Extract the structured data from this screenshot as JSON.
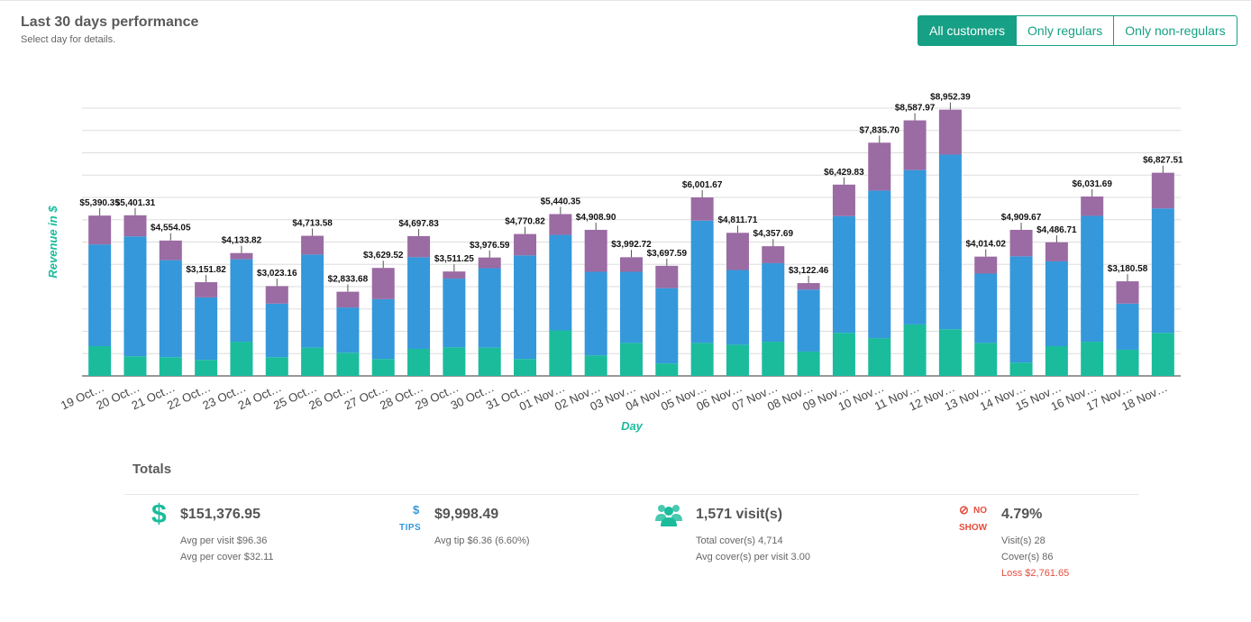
{
  "header": {
    "title": "Last 30 days performance",
    "subtitle": "Select day for details."
  },
  "filters": {
    "all": "All customers",
    "regulars": "Only regulars",
    "non_regulars": "Only non-regulars",
    "active": "all"
  },
  "colors": {
    "accent": "#16a085",
    "bottom_segment": "#1abc9c",
    "middle_segment": "#3498db",
    "top_segment": "#9b6ba3",
    "axis_label": "#1abc9c"
  },
  "chart_data": {
    "type": "bar",
    "stacked": true,
    "ylabel": "Revenue in $",
    "xlabel": "Day",
    "ylim": [
      0,
      9000
    ],
    "grid": true,
    "categories": [
      "19 Oct…",
      "20 Oct…",
      "21 Oct…",
      "22 Oct…",
      "23 Oct…",
      "24 Oct…",
      "25 Oct…",
      "26 Oct…",
      "27 Oct…",
      "28 Oct…",
      "29 Oct…",
      "30 Oct…",
      "31 Oct…",
      "01 Nov…",
      "02 Nov…",
      "03 Nov…",
      "04 Nov…",
      "05 Nov…",
      "06 Nov…",
      "07 Nov…",
      "08 Nov…",
      "09 Nov…",
      "10 Nov…",
      "11 Nov…",
      "12 Nov…",
      "13 Nov…",
      "14 Nov…",
      "15 Nov…",
      "16 Nov…",
      "17 Nov…",
      "18 Nov…"
    ],
    "totals": [
      5390.35,
      5401.31,
      4554.05,
      3151.82,
      4133.82,
      3023.16,
      4713.58,
      2833.68,
      3629.52,
      4697.83,
      3511.25,
      3976.59,
      4770.82,
      5440.35,
      4908.9,
      3992.72,
      3697.59,
      6001.67,
      4811.71,
      4357.69,
      3122.46,
      6429.83,
      7835.7,
      8587.97,
      8952.39,
      4014.02,
      4909.67,
      4486.71,
      6031.69,
      3180.58,
      6827.51
    ],
    "total_labels": [
      "$5,390.35",
      "$5,401.31",
      "$4,554.05",
      "$3,151.82",
      "$4,133.82",
      "$3,023.16",
      "$4,713.58",
      "$2,833.68",
      "$3,629.52",
      "$4,697.83",
      "$3,511.25",
      "$3,976.59",
      "$4,770.82",
      "$5,440.35",
      "$4,908.90",
      "$3,992.72",
      "$3,697.59",
      "$6,001.67",
      "$4,811.71",
      "$4,357.69",
      "$3,122.46",
      "$6,429.83",
      "$7,835.70",
      "$8,587.97",
      "$8,952.39",
      "$4,014.02",
      "$4,909.67",
      "$4,486.71",
      "$6,031.69",
      "$3,180.58",
      "$6,827.51"
    ],
    "series": [
      {
        "values": [
          1000,
          660,
          630,
          540,
          1150,
          630,
          950,
          780,
          570,
          910,
          960,
          950,
          570,
          1530,
          690,
          1110,
          420,
          1110,
          1050,
          1150,
          820,
          1450,
          1270,
          1730,
          1570,
          1110,
          450,
          1000,
          1150,
          880,
          1450
        ]
      },
      {
        "values": [
          3420,
          4030,
          3260,
          2100,
          2770,
          1800,
          3130,
          1520,
          2010,
          3080,
          2310,
          2670,
          3480,
          3210,
          2810,
          2390,
          2530,
          4110,
          2510,
          2640,
          2080,
          3920,
          4960,
          5190,
          5870,
          2330,
          3570,
          2850,
          4230,
          1550,
          4180
        ]
      },
      {
        "values": [
          970,
          710,
          660,
          510,
          210,
          590,
          630,
          530,
          1050,
          710,
          240,
          360,
          720,
          700,
          1410,
          490,
          750,
          780,
          1250,
          570,
          220,
          1060,
          1610,
          1670,
          1510,
          570,
          890,
          640,
          650,
          750,
          1200
        ]
      }
    ]
  },
  "totals": {
    "title": "Totals",
    "revenue": {
      "value": "$151,376.95",
      "line1": "Avg per visit $96.36",
      "line2": "Avg per cover $32.11"
    },
    "tips": {
      "icon_symbol": "$",
      "icon_label": "TIPS",
      "value": "$9,998.49",
      "line1": "Avg tip $6.36 (6.60%)"
    },
    "visits": {
      "value": "1,571 visit(s)",
      "line1": "Total cover(s) 4,714",
      "line2": "Avg cover(s) per visit 3.00"
    },
    "noshow": {
      "icon_symbol": "⊘",
      "icon_word1": "NO",
      "icon_word2": "SHOW",
      "value": "4.79%",
      "line1": "Visit(s) 28",
      "line2": "Cover(s) 86",
      "line3": "Loss $2,761.65"
    }
  }
}
